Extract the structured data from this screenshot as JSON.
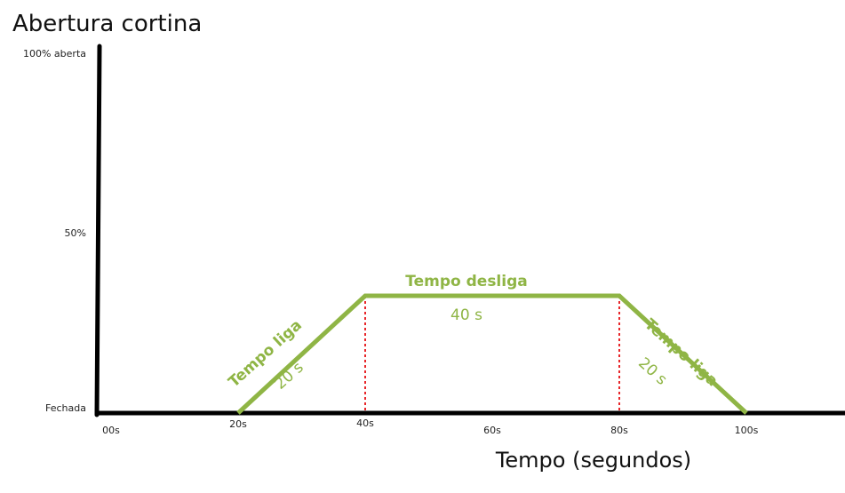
{
  "chart_data": {
    "type": "line",
    "title": "Abertura cortina",
    "xlabel": "Tempo (segundos)",
    "ylabel": "",
    "x_tick_labels": [
      {
        "x": 0,
        "label": "00s"
      },
      {
        "x": 20,
        "label": "20s"
      },
      {
        "x": 40,
        "label": "40s"
      },
      {
        "x": 60,
        "label": "60s"
      },
      {
        "x": 80,
        "label": "80s"
      },
      {
        "x": 100,
        "label": "100s"
      }
    ],
    "y_tick_labels": [
      {
        "y": 0,
        "label": "Fechada"
      },
      {
        "y": 50,
        "label": "50%"
      },
      {
        "y": 100,
        "label": "100% aberta"
      }
    ],
    "xlim": [
      -2,
      118
    ],
    "ylim": [
      0,
      100
    ],
    "grid": false,
    "series": [
      {
        "color": "#8fb545",
        "points": [
          {
            "x": 20,
            "y": 0
          },
          {
            "x": 40,
            "y": 33
          },
          {
            "x": 80,
            "y": 33
          },
          {
            "x": 100,
            "y": 0
          }
        ]
      }
    ],
    "reference_lines": [
      {
        "x": 40,
        "color": "#e8262a",
        "style": "dotted"
      },
      {
        "x": 80,
        "color": "#e8262a",
        "style": "dotted"
      }
    ],
    "annotations": [
      {
        "id": "ramp-up",
        "label": "Tempo liga",
        "duration": "20 s"
      },
      {
        "id": "plateau",
        "label": "Tempo desliga",
        "duration": "40 s"
      },
      {
        "id": "ramp-down",
        "label": "Tempo liga",
        "duration": "20 s"
      }
    ]
  }
}
